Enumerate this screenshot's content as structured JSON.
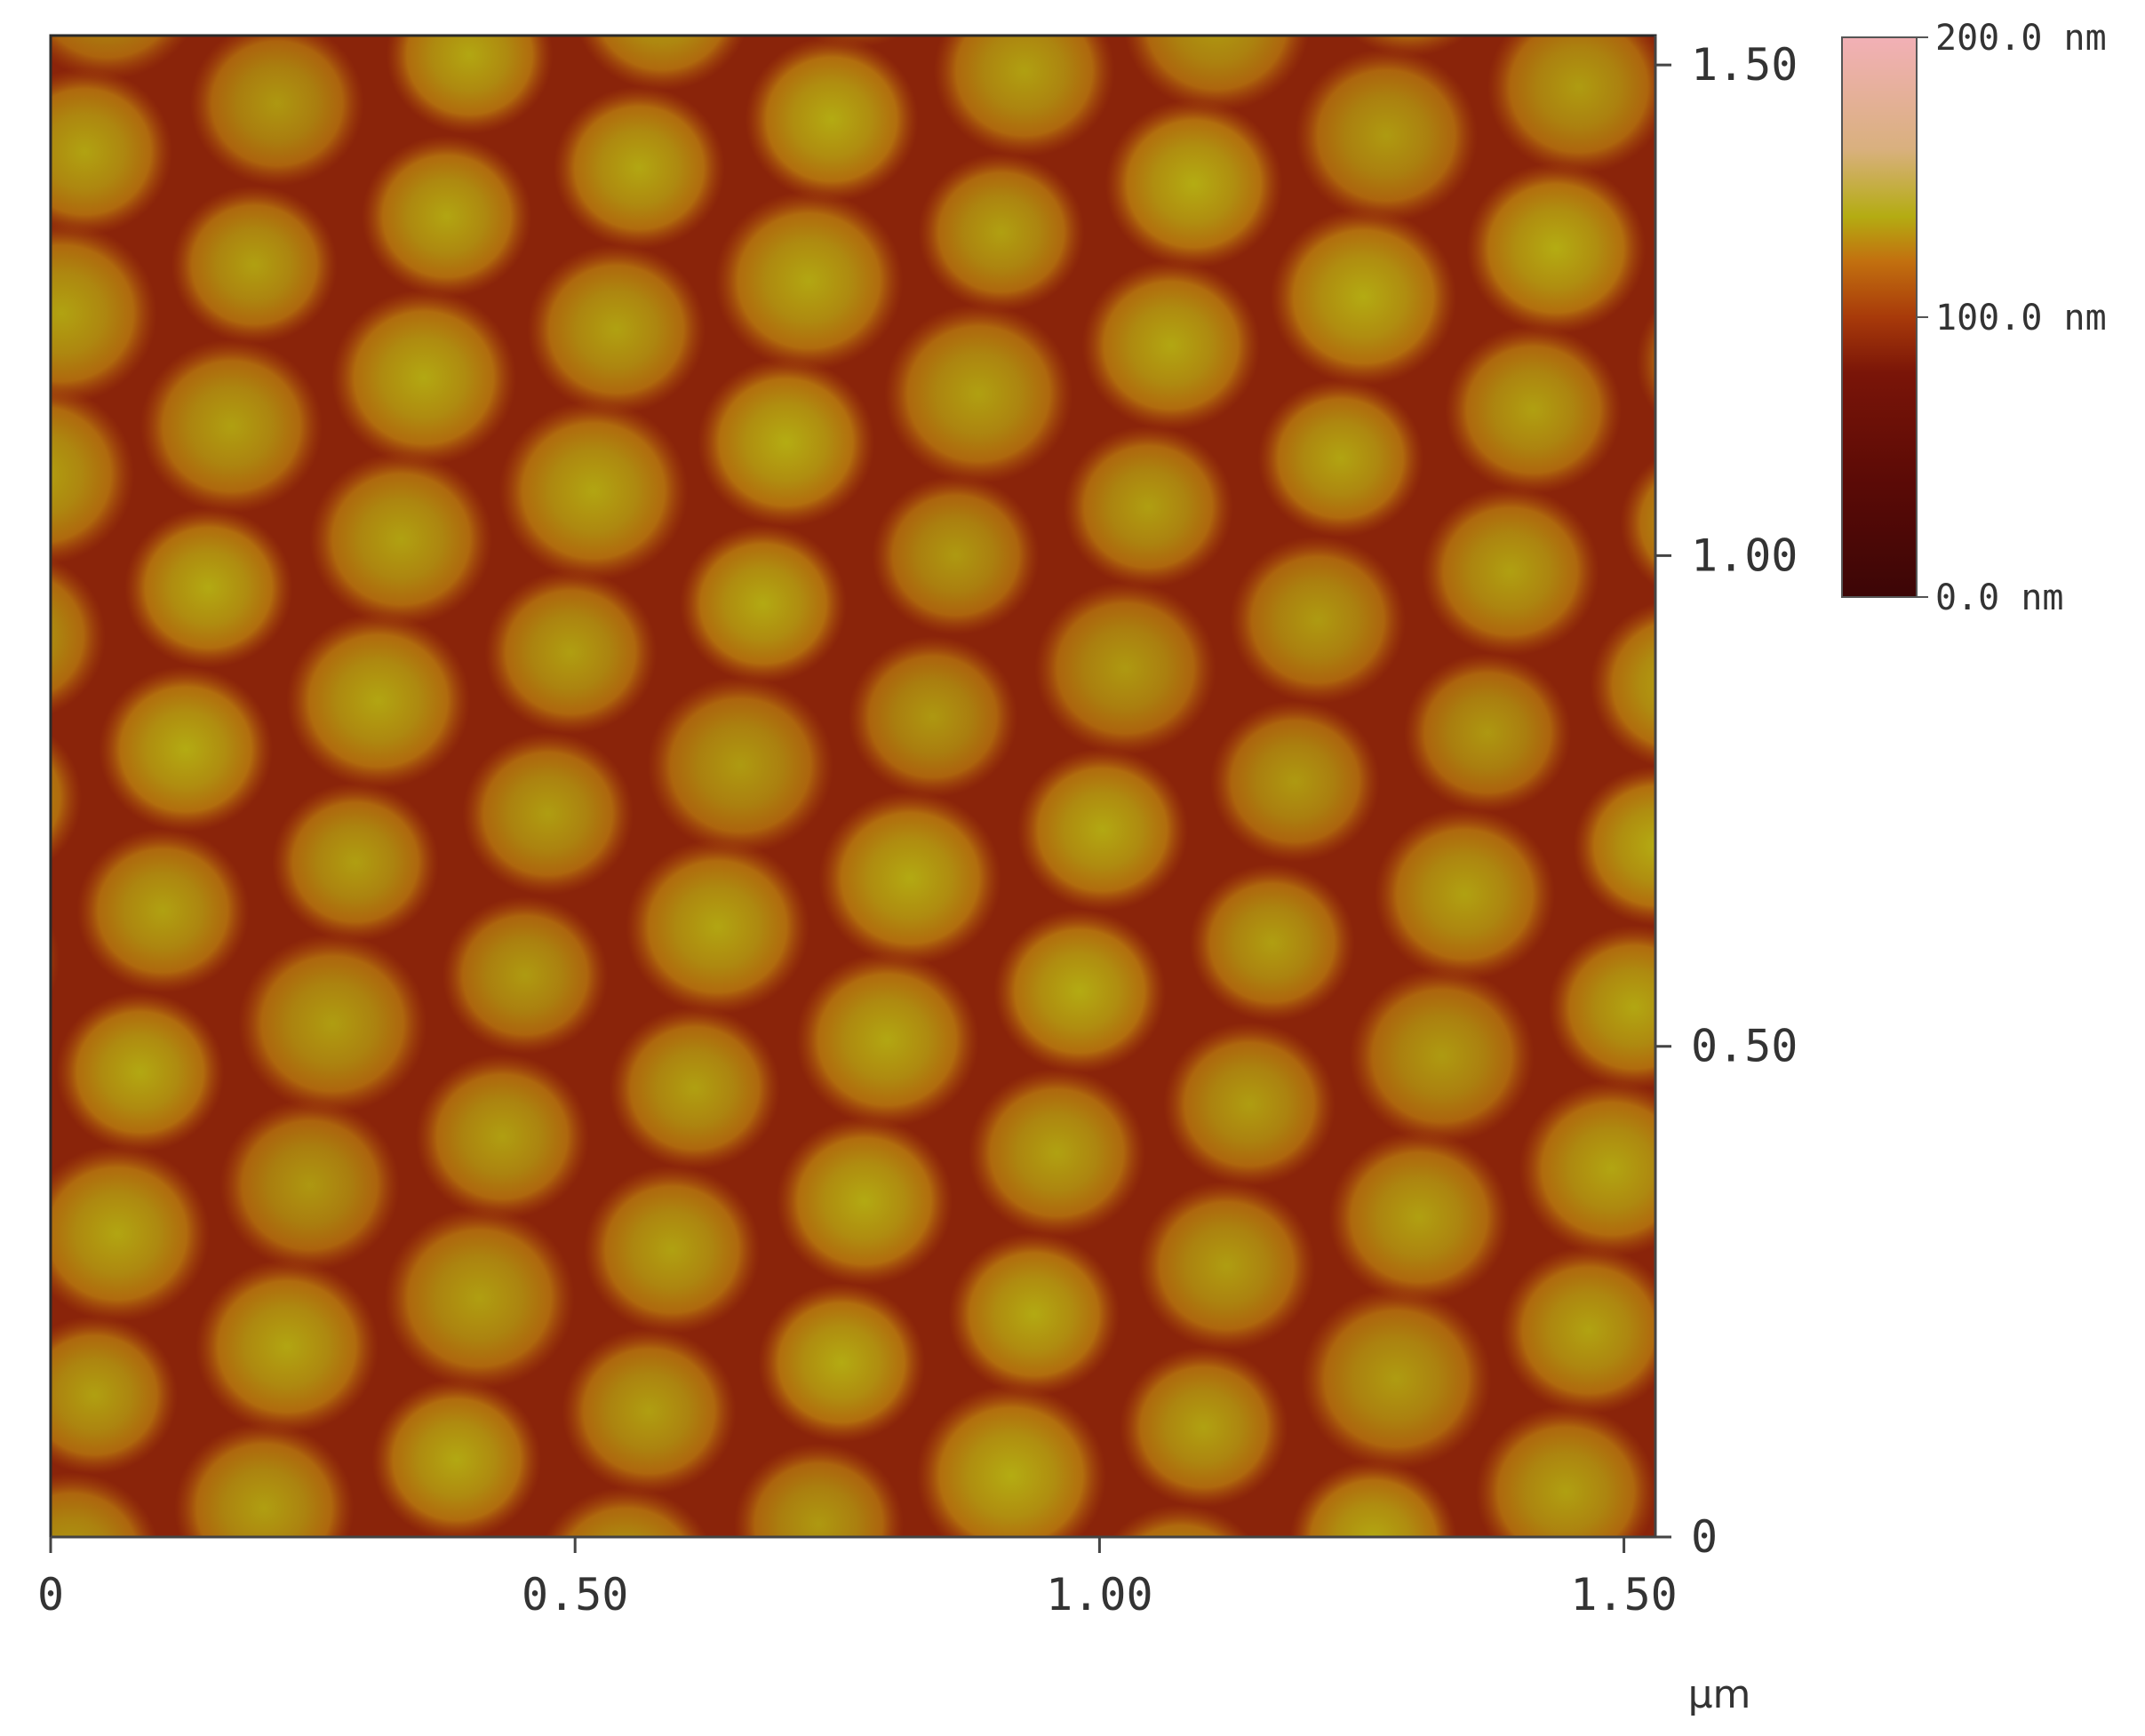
{
  "chart_data": {
    "type": "heatmap",
    "title": "",
    "xlabel": "µm",
    "ylabel": "",
    "xlim": [
      0,
      1.53
    ],
    "ylim": [
      0,
      1.53
    ],
    "x_ticks": [
      {
        "value": 0,
        "label": "0"
      },
      {
        "value": 0.5,
        "label": "0.50"
      },
      {
        "value": 1.0,
        "label": "1.00"
      },
      {
        "value": 1.5,
        "label": "1.50"
      }
    ],
    "y_ticks": [
      {
        "value": 0,
        "label": "0"
      },
      {
        "value": 0.5,
        "label": "0.50"
      },
      {
        "value": 1.0,
        "label": "1.00"
      },
      {
        "value": 1.5,
        "label": "1.50"
      }
    ],
    "colorbar": {
      "min": 0,
      "max": 200,
      "unit": "nm",
      "labels": [
        {
          "value": 200,
          "label": "200.0 nm"
        },
        {
          "value": 100,
          "label": "100.0 nm"
        },
        {
          "value": 0,
          "label": "0.0 nm"
        }
      ],
      "colors": [
        "#3c0606",
        "#7a1508",
        "#a83a0a",
        "#c2700f",
        "#b4ac12",
        "#d9b07e",
        "#f2b0b6"
      ]
    },
    "surface": {
      "background_height_nm": 70,
      "feature": "hexagonally packed domes",
      "dome_spacing_um": 0.19,
      "peak_height_nm": 135
    }
  }
}
